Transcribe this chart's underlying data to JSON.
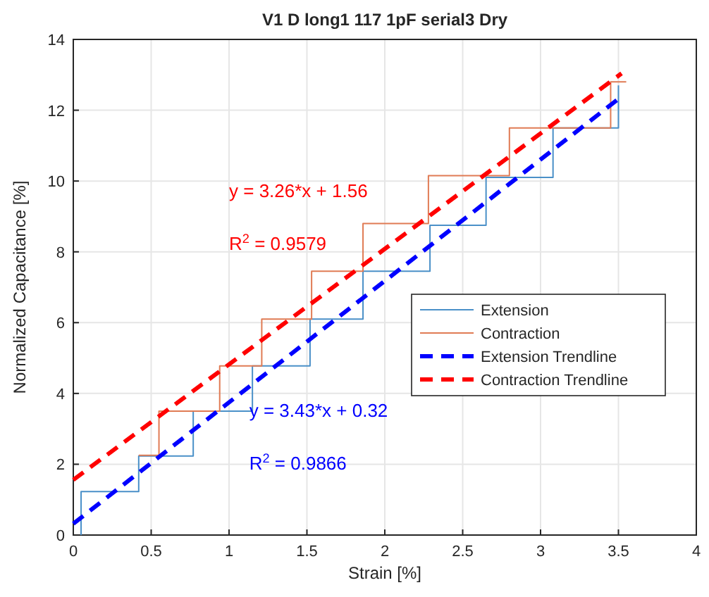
{
  "chart_data": {
    "type": "line",
    "title": "V1 D long1 117 1pF serial3 Dry",
    "xlabel": "Strain [%]",
    "ylabel": "Normalized Capacitance [%]",
    "xlim": [
      0,
      4
    ],
    "xticks": [
      0,
      0.5,
      1,
      1.5,
      2,
      2.5,
      3,
      3.5,
      4
    ],
    "ylim": [
      0,
      14
    ],
    "yticks": [
      0,
      2,
      4,
      6,
      8,
      10,
      12,
      14
    ],
    "grid": true,
    "legend": "right",
    "annotations": [
      "y =  3.26*x + 1.56",
      "R$^{2}$ = 0.9579",
      "y = 3.43*x + 0.32",
      "R$^{2}$ = 0.9866"
    ],
    "series": [
      {
        "name": "Extension",
        "color": "#4a90c8",
        "line_style": "solid",
        "x": [
          0.05,
          0.05,
          0.42,
          0.42,
          0.77,
          0.77,
          1.15,
          1.15,
          1.52,
          1.52,
          1.86,
          1.86,
          2.29,
          2.29,
          2.65,
          2.65,
          3.08,
          3.08,
          3.5,
          3.5
        ],
        "values": [
          0,
          1.23,
          1.23,
          2.23,
          2.23,
          3.5,
          3.5,
          4.78,
          4.78,
          6.1,
          6.1,
          7.45,
          7.45,
          8.75,
          8.75,
          10.1,
          10.1,
          11.5,
          11.5,
          12.7
        ]
      },
      {
        "name": "Contraction",
        "color": "#e07b54",
        "line_style": "solid",
        "x": [
          3.55,
          3.45,
          3.45,
          2.8,
          2.8,
          2.28,
          2.28,
          1.86,
          1.86,
          1.53,
          1.53,
          1.21,
          1.21,
          0.94,
          0.94,
          0.55,
          0.55,
          0.42
        ],
        "values": [
          12.8,
          12.8,
          11.5,
          11.5,
          10.15,
          10.15,
          8.8,
          8.8,
          7.45,
          7.45,
          6.1,
          6.1,
          4.78,
          4.78,
          3.5,
          3.5,
          2.25,
          2.25
        ]
      },
      {
        "name": "Extension Trendline",
        "color": "#0000ff",
        "line_style": "dashed",
        "x": [
          0,
          3.52
        ],
        "values": [
          0.32,
          12.39
        ]
      },
      {
        "name": "Contraction Trendline",
        "color": "#ff0000",
        "line_style": "dashed",
        "x": [
          0,
          3.52
        ],
        "values": [
          1.56,
          13.04
        ]
      }
    ]
  }
}
